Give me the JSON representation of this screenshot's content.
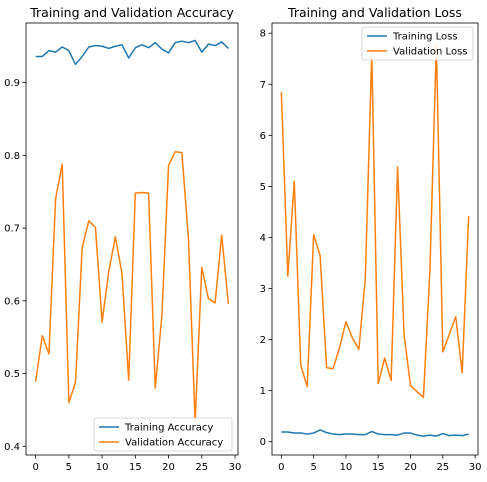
{
  "chart_data": [
    {
      "type": "line",
      "title": "Training and Validation Accuracy",
      "xlabel": "",
      "ylabel": "",
      "xlim": [
        -1.45,
        30.45
      ],
      "ylim": [
        0.388,
        0.982
      ],
      "xticks": [
        0,
        5,
        10,
        15,
        20,
        25,
        30
      ],
      "yticks": [
        0.4,
        0.5,
        0.6,
        0.7,
        0.8,
        0.9
      ],
      "ytick_labels": [
        "0.4",
        "0.5",
        "0.6",
        "0.7",
        "0.8",
        "0.9"
      ],
      "legend_position": "lower-right",
      "grid": false,
      "x": [
        0,
        1,
        2,
        3,
        4,
        5,
        6,
        7,
        8,
        9,
        10,
        11,
        12,
        13,
        14,
        15,
        16,
        17,
        18,
        19,
        20,
        21,
        22,
        23,
        24,
        25,
        26,
        27,
        28,
        29
      ],
      "series": [
        {
          "name": "Training Accuracy",
          "color": "#1f77b4",
          "values": [
            0.936,
            0.936,
            0.944,
            0.942,
            0.949,
            0.944,
            0.925,
            0.936,
            0.949,
            0.951,
            0.95,
            0.947,
            0.95,
            0.952,
            0.934,
            0.948,
            0.952,
            0.948,
            0.955,
            0.946,
            0.941,
            0.955,
            0.957,
            0.955,
            0.958,
            0.942,
            0.953,
            0.951,
            0.956,
            0.947
          ]
        },
        {
          "name": "Validation Accuracy",
          "color": "#ff7f0e",
          "values": [
            0.489,
            0.552,
            0.527,
            0.74,
            0.788,
            0.46,
            0.488,
            0.673,
            0.71,
            0.701,
            0.571,
            0.64,
            0.688,
            0.637,
            0.491,
            0.748,
            0.749,
            0.748,
            0.48,
            0.58,
            0.786,
            0.805,
            0.804,
            0.685,
            0.433,
            0.646,
            0.603,
            0.597,
            0.69,
            0.596
          ]
        }
      ]
    },
    {
      "type": "line",
      "title": "Training and Validation Loss",
      "xlabel": "",
      "ylabel": "",
      "xlim": [
        -1.45,
        30.45
      ],
      "ylim": [
        -0.26,
        8.2
      ],
      "xticks": [
        0,
        5,
        10,
        15,
        20,
        25,
        30
      ],
      "yticks": [
        0,
        1,
        2,
        3,
        4,
        5,
        6,
        7,
        8
      ],
      "ytick_labels": [
        "0",
        "1",
        "2",
        "3",
        "4",
        "5",
        "6",
        "7",
        "8"
      ],
      "legend_position": "upper-right",
      "grid": false,
      "x": [
        0,
        1,
        2,
        3,
        4,
        5,
        6,
        7,
        8,
        9,
        10,
        11,
        12,
        13,
        14,
        15,
        16,
        17,
        18,
        19,
        20,
        21,
        22,
        23,
        24,
        25,
        26,
        27,
        28,
        29
      ],
      "series": [
        {
          "name": "Training Loss",
          "color": "#1f77b4",
          "values": [
            0.19,
            0.19,
            0.17,
            0.17,
            0.15,
            0.17,
            0.23,
            0.18,
            0.15,
            0.14,
            0.15,
            0.15,
            0.14,
            0.14,
            0.2,
            0.15,
            0.14,
            0.14,
            0.13,
            0.17,
            0.17,
            0.13,
            0.11,
            0.13,
            0.11,
            0.16,
            0.12,
            0.13,
            0.12,
            0.15
          ]
        },
        {
          "name": "Validation Loss",
          "color": "#ff7f0e",
          "values": [
            6.85,
            3.24,
            5.1,
            1.5,
            1.08,
            4.05,
            3.65,
            1.45,
            1.43,
            1.84,
            2.35,
            2.03,
            1.81,
            3.2,
            7.6,
            1.14,
            1.64,
            1.2,
            5.38,
            2.1,
            1.1,
            0.98,
            0.87,
            3.35,
            7.78,
            1.76,
            2.1,
            2.45,
            1.35,
            4.42
          ]
        }
      ]
    }
  ]
}
